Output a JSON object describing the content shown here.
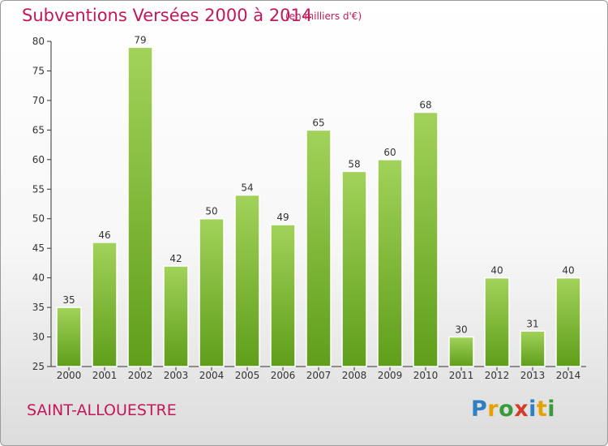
{
  "header": {
    "title": "Subventions Versées 2000 à 2014",
    "subtitle": "(en milliers d'€)"
  },
  "footer": {
    "place": "SAINT-ALLOUESTRE",
    "logo_letters": [
      "P",
      "r",
      "o",
      "x",
      "i",
      "t",
      "i"
    ]
  },
  "chart_data": {
    "type": "bar",
    "title": "Subventions Versées 2000 à 2014",
    "subtitle": "(en milliers d'€)",
    "xlabel": "",
    "ylabel": "",
    "categories": [
      "2000",
      "2001",
      "2002",
      "2003",
      "2004",
      "2005",
      "2006",
      "2007",
      "2008",
      "2009",
      "2010",
      "2011",
      "2012",
      "2013",
      "2014"
    ],
    "values": [
      35,
      46,
      79,
      42,
      50,
      54,
      49,
      65,
      58,
      60,
      68,
      30,
      40,
      31,
      40
    ],
    "ylim": [
      25,
      80
    ],
    "yticks": [
      25,
      30,
      35,
      40,
      45,
      50,
      55,
      60,
      65,
      70,
      75,
      80
    ],
    "grid": false,
    "bar_color_top": "#a2d25a",
    "bar_color_bottom": "#5f9e1a"
  }
}
